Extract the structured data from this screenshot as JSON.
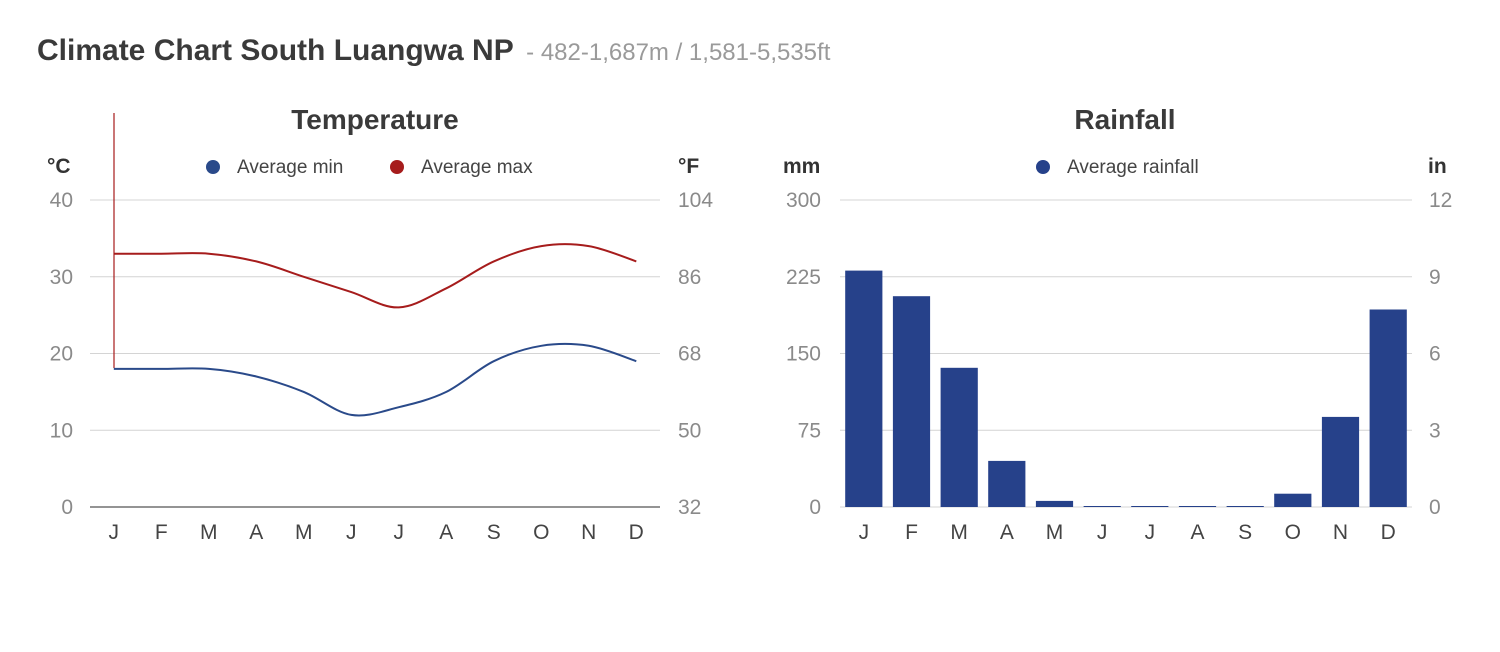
{
  "page": {
    "title": "Climate Chart South Luangwa NP",
    "subtitle": "- 482-1,687m / 1,581-5,535ft"
  },
  "chart_data": [
    {
      "type": "line",
      "title": "Temperature",
      "left_unit": "°C",
      "right_unit": "°F",
      "categories": [
        "J",
        "F",
        "M",
        "A",
        "M",
        "J",
        "J",
        "A",
        "S",
        "O",
        "N",
        "D"
      ],
      "ylim": [
        0,
        40
      ],
      "left_ticks": [
        "0",
        "10",
        "20",
        "30",
        "40"
      ],
      "right_ticks": [
        "32",
        "50",
        "68",
        "86",
        "104"
      ],
      "series": [
        {
          "name": "Average min",
          "color": "#2a4a8a",
          "values": [
            18,
            18,
            18,
            17,
            15,
            12,
            13,
            15,
            19,
            21,
            21,
            19
          ]
        },
        {
          "name": "Average max",
          "color": "#a61c1c",
          "values": [
            33,
            33,
            33,
            32,
            30,
            28,
            26,
            28.5,
            32,
            34,
            34,
            32
          ]
        }
      ]
    },
    {
      "type": "bar",
      "title": "Rainfall",
      "left_unit": "mm",
      "right_unit": "in",
      "categories": [
        "J",
        "F",
        "M",
        "A",
        "M",
        "J",
        "J",
        "A",
        "S",
        "O",
        "N",
        "D"
      ],
      "ylim": [
        0,
        300
      ],
      "left_ticks": [
        "0",
        "75",
        "150",
        "225",
        "300"
      ],
      "right_ticks": [
        "0",
        "3",
        "6",
        "9",
        "12"
      ],
      "series": [
        {
          "name": "Average rainfall",
          "color": "#26418a",
          "values": [
            231,
            206,
            136,
            45,
            6,
            0,
            0,
            0,
            1,
            13,
            88,
            193
          ]
        }
      ]
    }
  ]
}
